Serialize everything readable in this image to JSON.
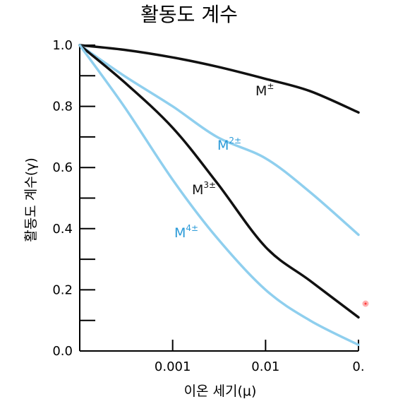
{
  "chart_data": {
    "type": "line",
    "title": "활동도 계수",
    "xlabel": "이온 세기(μ)",
    "ylabel": "활동도 계수(γ)",
    "x_scale": "log",
    "xlim": [
      0.0001,
      0.1
    ],
    "ylim": [
      0.0,
      1.0
    ],
    "x_tick_labels": [
      "0.001",
      "0.01",
      "0."
    ],
    "y_tick_labels": [
      "0.0",
      "0.2",
      "0.4",
      "0.6",
      "0.8",
      "1.0"
    ],
    "series": [
      {
        "label_base": "M",
        "label_sup": "±",
        "color": "#111111",
        "x": [
          0.0001,
          0.0003,
          0.001,
          0.003,
          0.01,
          0.03,
          0.1
        ],
        "y": [
          1.0,
          0.985,
          0.96,
          0.93,
          0.89,
          0.85,
          0.78
        ]
      },
      {
        "label_base": "M",
        "label_sup": "2±",
        "color": "#8fcfee",
        "x": [
          0.0001,
          0.0003,
          0.001,
          0.003,
          0.01,
          0.03,
          0.1
        ],
        "y": [
          1.0,
          0.9,
          0.8,
          0.7,
          0.63,
          0.52,
          0.38
        ]
      },
      {
        "label_base": "M",
        "label_sup": "3±",
        "color": "#111111",
        "x": [
          0.0001,
          0.0003,
          0.001,
          0.003,
          0.01,
          0.03,
          0.1
        ],
        "y": [
          1.0,
          0.88,
          0.73,
          0.55,
          0.34,
          0.23,
          0.11
        ]
      },
      {
        "label_base": "M",
        "label_sup": "4±",
        "color": "#8fcfee",
        "x": [
          0.0001,
          0.0003,
          0.001,
          0.003,
          0.01,
          0.03,
          0.1
        ],
        "y": [
          1.0,
          0.8,
          0.56,
          0.37,
          0.2,
          0.1,
          0.02
        ]
      }
    ],
    "grid": false,
    "legend": "inline"
  },
  "colors": {
    "black_series": "#111111",
    "blue_series": "#8fcfee",
    "label_blue": "#2a9ad8"
  }
}
